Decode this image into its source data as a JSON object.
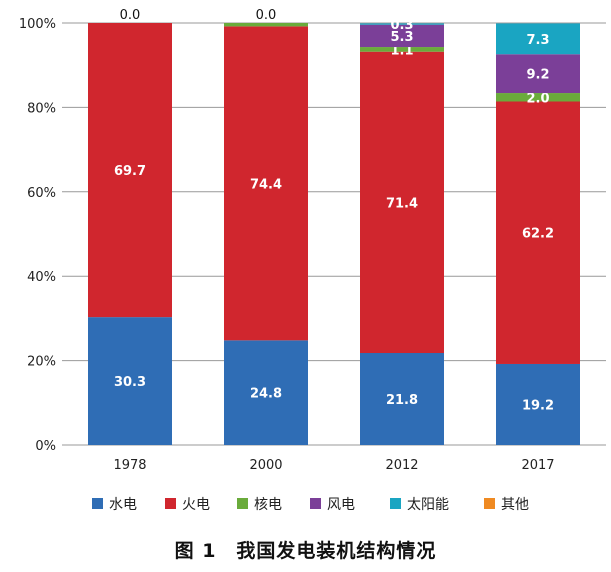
{
  "caption": "图 1　我国发电装机结构情况",
  "chart_data": {
    "type": "bar",
    "stacked": true,
    "categories": [
      "1978",
      "2000",
      "2012",
      "2017"
    ],
    "ylim": [
      0,
      100
    ],
    "y_ticks": [
      "0%",
      "20%",
      "40%",
      "60%",
      "80%",
      "100%"
    ],
    "grid": true,
    "legend_position": "bottom",
    "series": [
      {
        "name": "水电",
        "color": "#2f6db5",
        "values": [
          30.3,
          24.8,
          21.8,
          19.2
        ],
        "labels": [
          "30.3",
          "24.8",
          "21.8",
          "19.2"
        ]
      },
      {
        "name": "火电",
        "color": "#d0262e",
        "values": [
          69.7,
          74.4,
          71.4,
          62.2
        ],
        "labels": [
          "69.7",
          "74.4",
          "71.4",
          "62.2"
        ]
      },
      {
        "name": "核电",
        "color": "#6aab3b",
        "values": [
          0.0,
          0.8,
          1.1,
          2.0
        ],
        "labels": [
          "",
          "",
          "1.1",
          "2.0"
        ]
      },
      {
        "name": "风电",
        "color": "#7b3f98",
        "values": [
          0.0,
          0.0,
          5.3,
          9.2
        ],
        "labels": [
          "",
          "",
          "5.3",
          "9.2"
        ]
      },
      {
        "name": "太阳能",
        "color": "#1aa5c2",
        "values": [
          0.0,
          0.0,
          0.3,
          7.3
        ],
        "labels": [
          "0.0",
          "0.0",
          "0.3",
          "7.3"
        ]
      },
      {
        "name": "其他",
        "color": "#ef8a22",
        "values": [
          0.0,
          0.0,
          0.0,
          0.0
        ],
        "labels": [
          "",
          "",
          "",
          ""
        ]
      }
    ]
  }
}
